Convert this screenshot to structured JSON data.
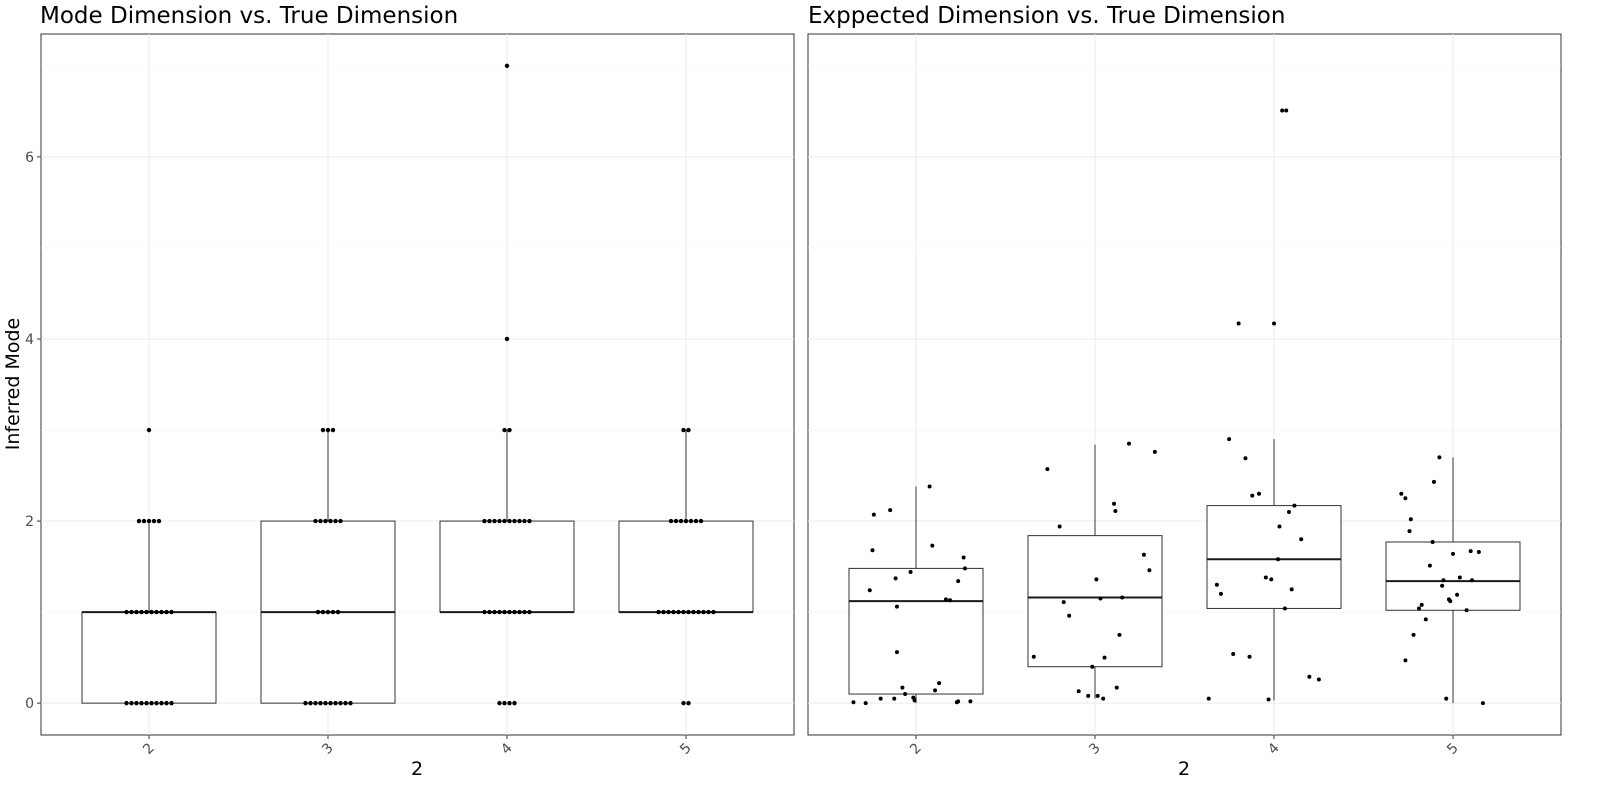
{
  "chart_data": [
    {
      "type": "box",
      "title": "Mode Dimension vs. True Dimension",
      "xlabel": "2",
      "ylabel": "Inferred Mode",
      "categories": [
        "2",
        "3",
        "4",
        "5"
      ],
      "ylim": [
        -0.35,
        7.35
      ],
      "yticks": [
        0,
        2,
        4,
        6
      ],
      "boxes": [
        {
          "category": "2",
          "lower_whisker": 0,
          "q1": 0,
          "median": 1,
          "q3": 1,
          "upper_whisker": 2
        },
        {
          "category": "3",
          "lower_whisker": 0,
          "q1": 0,
          "median": 1,
          "q3": 2,
          "upper_whisker": 3
        },
        {
          "category": "4",
          "lower_whisker": 1,
          "q1": 1,
          "median": 1,
          "q3": 2,
          "upper_whisker": 3
        },
        {
          "category": "5",
          "lower_whisker": 1,
          "q1": 1,
          "median": 1,
          "q3": 2,
          "upper_whisker": 3
        }
      ],
      "point_counts": [
        {
          "category": "2",
          "counts": {
            "0": 10,
            "1": 10,
            "2": 5,
            "3": 1
          }
        },
        {
          "category": "3",
          "counts": {
            "0": 10,
            "1": 5,
            "2": 6,
            "3": 3
          }
        },
        {
          "category": "4",
          "counts": {
            "0": 4,
            "1": 10,
            "2": 10,
            "3": 2,
            "4": 1,
            "7": 1
          }
        },
        {
          "category": "5",
          "counts": {
            "0": 2,
            "1": 12,
            "2": 7,
            "3": 2
          }
        }
      ]
    },
    {
      "type": "box",
      "title": "Exppected Dimension vs. True Dimension",
      "xlabel": "2",
      "ylabel": "Inferred Mode",
      "categories": [
        "2",
        "3",
        "4",
        "5"
      ],
      "ylim": [
        -0.35,
        7.35
      ],
      "yticks": [
        0,
        2,
        4,
        6
      ],
      "boxes": [
        {
          "category": "2",
          "lower_whisker": 0.0,
          "q1": 0.1,
          "median": 1.12,
          "q3": 1.48,
          "upper_whisker": 2.38
        },
        {
          "category": "3",
          "lower_whisker": 0.05,
          "q1": 0.4,
          "median": 1.16,
          "q3": 1.84,
          "upper_whisker": 2.84
        },
        {
          "category": "4",
          "lower_whisker": 0.03,
          "q1": 1.04,
          "median": 1.58,
          "q3": 2.17,
          "upper_whisker": 2.9
        },
        {
          "category": "5",
          "lower_whisker": 0.0,
          "q1": 1.02,
          "median": 1.34,
          "q3": 1.77,
          "upper_whisker": 2.7
        }
      ],
      "points": [
        {
          "category": "2",
          "x": [
            -0.46,
            -0.37,
            -0.34,
            -0.32,
            -0.31,
            -0.19,
            -0.26,
            -0.16,
            -0.15,
            -0.14,
            -0.14,
            -0.1,
            -0.08,
            -0.04,
            -0.02,
            -0.01,
            0.1,
            0.12,
            0.14,
            0.17,
            0.22,
            0.25,
            0.3,
            0.31,
            0.31,
            0.35,
            0.36,
            0.4
          ],
          "y": [
            0.01,
            0.0,
            1.24,
            1.68,
            2.07,
            2.12,
            0.05,
            0.05,
            1.37,
            1.06,
            0.56,
            0.17,
            0.1,
            1.44,
            0.06,
            0.03,
            2.38,
            1.73,
            0.14,
            0.22,
            1.14,
            1.13,
            0.01,
            0.02,
            1.34,
            1.6,
            1.48,
            0.02
          ]
        },
        {
          "category": "3",
          "x": [
            -0.45,
            -0.35,
            -0.26,
            -0.23,
            -0.19,
            -0.12,
            -0.05,
            -0.02,
            0.01,
            0.02,
            0.04,
            0.06,
            0.07,
            0.14,
            0.15,
            0.16,
            0.18,
            0.2,
            0.25,
            0.36,
            0.4,
            0.44
          ],
          "y": [
            0.51,
            2.57,
            1.94,
            1.11,
            0.96,
            0.13,
            0.08,
            0.4,
            1.36,
            0.08,
            1.15,
            0.05,
            0.5,
            2.19,
            2.11,
            0.17,
            0.75,
            1.16,
            2.85,
            1.63,
            1.46,
            2.76
          ]
        },
        {
          "category": "4",
          "x": [
            -0.48,
            -0.42,
            -0.39,
            -0.33,
            -0.3,
            -0.26,
            -0.21,
            -0.18,
            -0.16,
            -0.11,
            -0.06,
            -0.04,
            -0.02,
            0.0,
            0.03,
            0.04,
            0.06,
            0.08,
            0.09,
            0.11,
            0.13,
            0.15,
            0.2,
            0.26,
            0.33
          ],
          "y": [
            0.05,
            1.3,
            1.2,
            2.9,
            0.54,
            4.17,
            2.69,
            0.51,
            2.28,
            2.3,
            1.38,
            0.04,
            1.36,
            4.17,
            1.58,
            1.94,
            6.51,
            1.04,
            6.51,
            2.1,
            1.25,
            2.17,
            1.8,
            0.29,
            0.26
          ]
        },
        {
          "category": "5",
          "x": [
            -0.38,
            -0.35,
            -0.35,
            -0.32,
            -0.31,
            -0.29,
            -0.25,
            -0.23,
            -0.2,
            -0.17,
            -0.15,
            -0.14,
            -0.1,
            -0.08,
            -0.07,
            -0.05,
            -0.03,
            -0.02,
            0.0,
            0.03,
            0.05,
            0.1,
            0.13,
            0.14,
            0.19,
            0.22
          ],
          "y": [
            2.3,
            0.47,
            2.25,
            1.89,
            2.02,
            0.75,
            1.04,
            1.08,
            0.92,
            1.51,
            1.77,
            2.43,
            2.7,
            1.29,
            1.35,
            0.05,
            1.14,
            1.12,
            1.64,
            1.19,
            1.38,
            1.02,
            1.67,
            1.35,
            1.66,
            0.0
          ]
        }
      ]
    }
  ]
}
